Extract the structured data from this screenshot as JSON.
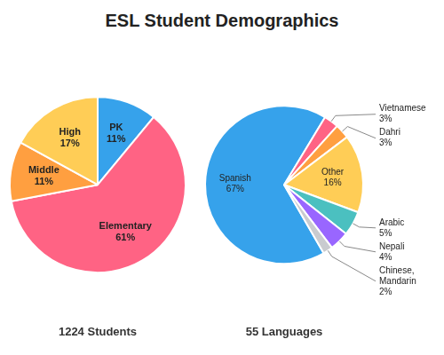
{
  "chart_data": [
    {
      "type": "pie",
      "title": "ESL Student Demographics",
      "categories": [
        "PK",
        "Elementary",
        "Middle",
        "High"
      ],
      "values": [
        11,
        61,
        11,
        17
      ],
      "value_labels": [
        "11%",
        "61%",
        "11%",
        "17%"
      ],
      "data_labels": true,
      "annotations": [
        "1224 Students"
      ]
    },
    {
      "type": "pie",
      "categories": [
        "Spanish",
        "Vietnamese",
        "Dahri",
        "Other",
        "Arabic",
        "Nepali",
        "Chinese,\nMandarin"
      ],
      "values": [
        67,
        3,
        3,
        16,
        5,
        4,
        2
      ],
      "value_labels": [
        "67%",
        "3%",
        "3%",
        "16%",
        "5%",
        "4%",
        "2%"
      ],
      "data_labels": true,
      "annotations": [
        "55 Languages"
      ]
    }
  ]
}
